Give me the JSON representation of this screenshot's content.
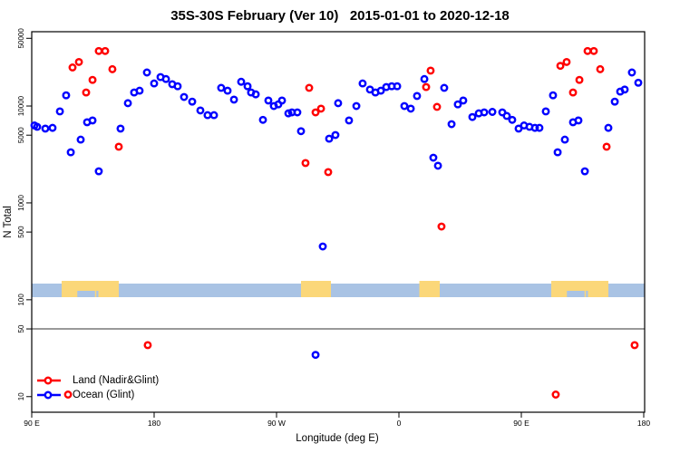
{
  "title": "35S-30S February (Ver 10)   2015-01-01 to 2020-12-18",
  "chart_data": {
    "type": "scatter",
    "title": "35S-30S February (Ver 10)   2015-01-01 to 2020-12-18",
    "xlabel": "Longitude (deg E)",
    "ylabel": "N Total",
    "x_axis": {
      "xlim": [
        90,
        540
      ],
      "ticks": [
        90,
        180,
        270,
        360,
        450,
        540
      ],
      "tick_labels": [
        "90 E",
        "180",
        "90 W",
        "0",
        "90 E",
        "180"
      ]
    },
    "y_axis": {
      "scale": "log",
      "ylim": [
        6.9,
        58500
      ],
      "ticks": [
        10,
        50,
        100,
        500,
        1000,
        5000,
        10000,
        50000
      ],
      "tick_labels": [
        "10",
        "50",
        "100",
        "500",
        "1000",
        "5000",
        "10000",
        "50000"
      ]
    },
    "reference_line_y": 50,
    "grid": false,
    "legend_position": "bottom-left",
    "map_strip": {
      "description": "land-ocean map band of latitude zone 35S-30S",
      "n_range": [
        100,
        150
      ],
      "ocean_color": "#a9c3e4",
      "land_color": "#fbd779",
      "land_segments_lon": [
        [
          112,
          154
        ],
        [
          288,
          310
        ],
        [
          375,
          390
        ],
        [
          472,
          514
        ]
      ],
      "ocean_notches_lon": [
        [
          123.5,
          136.5
        ],
        [
          137.5,
          139
        ],
        [
          483.5,
          496.5
        ],
        [
          497.5,
          499
        ]
      ]
    },
    "series": [
      {
        "name": "Land (Nadir&Glint)",
        "color": "#ff0000",
        "marker": "open-circle",
        "points": [
          [
            139.3,
            37000
          ],
          [
            144,
            37000
          ],
          [
            124.7,
            28500
          ],
          [
            120,
            25000
          ],
          [
            149.3,
            24000
          ],
          [
            134.7,
            18600
          ],
          [
            130,
            13800
          ],
          [
            154,
            3800
          ],
          [
            294,
            15400
          ],
          [
            298.7,
            8600
          ],
          [
            302.7,
            9400
          ],
          [
            291.3,
            2580
          ],
          [
            308,
            2080
          ],
          [
            380,
            15700
          ],
          [
            383.3,
            23200
          ],
          [
            388,
            9800
          ],
          [
            391.3,
            570
          ],
          [
            478.7,
            26000
          ],
          [
            483.3,
            28500
          ],
          [
            488,
            13800
          ],
          [
            492.7,
            18600
          ],
          [
            498.7,
            37000
          ],
          [
            503.3,
            37000
          ],
          [
            508,
            24000
          ],
          [
            512.7,
            3800
          ],
          [
            175.3,
            34
          ],
          [
            533.3,
            34
          ],
          [
            116.7,
            10.5
          ],
          [
            475.3,
            10.5
          ]
        ]
      },
      {
        "name": "Ocean (Glint)",
        "color": "#0000ff",
        "marker": "open-circle",
        "points": [
          [
            92,
            6300
          ],
          [
            94,
            6100
          ],
          [
            100,
            5850
          ],
          [
            105.3,
            5950
          ],
          [
            110.7,
            8800
          ],
          [
            115.3,
            12900
          ],
          [
            118.7,
            3330
          ],
          [
            126,
            4500
          ],
          [
            130.7,
            6800
          ],
          [
            134.7,
            7100
          ],
          [
            139.3,
            2120
          ],
          [
            155.3,
            5850
          ],
          [
            160.7,
            10700
          ],
          [
            165.3,
            13800
          ],
          [
            169.3,
            14400
          ],
          [
            174.7,
            22200
          ],
          [
            180,
            17100
          ],
          [
            184.7,
            19900
          ],
          [
            188.7,
            19000
          ],
          [
            193.3,
            16800
          ],
          [
            197.3,
            16000
          ],
          [
            202,
            12400
          ],
          [
            208,
            11100
          ],
          [
            214,
            9000
          ],
          [
            219.3,
            8050
          ],
          [
            224,
            8050
          ],
          [
            229.3,
            15400
          ],
          [
            234,
            14400
          ],
          [
            238.7,
            11650
          ],
          [
            244,
            17800
          ],
          [
            248.7,
            16000
          ],
          [
            251.3,
            13800
          ],
          [
            254.7,
            13200
          ],
          [
            260,
            7200
          ],
          [
            264,
            11400
          ],
          [
            268,
            10000
          ],
          [
            271.3,
            10400
          ],
          [
            274,
            11400
          ],
          [
            278.7,
            8400
          ],
          [
            281.3,
            8600
          ],
          [
            285.3,
            8600
          ],
          [
            288,
            5500
          ],
          [
            298.7,
            27
          ],
          [
            304,
            355
          ],
          [
            308.7,
            4600
          ],
          [
            313.3,
            5020
          ],
          [
            315.3,
            10700
          ],
          [
            323.3,
            7100
          ],
          [
            328.7,
            10000
          ],
          [
            333.3,
            17100
          ],
          [
            338.7,
            14800
          ],
          [
            342.7,
            13800
          ],
          [
            346.7,
            14400
          ],
          [
            350.7,
            15700
          ],
          [
            354.7,
            16000
          ],
          [
            358.7,
            16000
          ],
          [
            364,
            10000
          ],
          [
            368.7,
            9400
          ],
          [
            373.3,
            12700
          ],
          [
            378.7,
            19000
          ],
          [
            385.3,
            2930
          ],
          [
            388.7,
            2420
          ],
          [
            393.3,
            15400
          ],
          [
            398.7,
            6500
          ],
          [
            403.3,
            10400
          ],
          [
            407.3,
            11400
          ],
          [
            414,
            7700
          ],
          [
            418.7,
            8400
          ],
          [
            422.7,
            8600
          ],
          [
            428.7,
            8700
          ],
          [
            436,
            8600
          ],
          [
            439.3,
            7900
          ],
          [
            443.3,
            7200
          ],
          [
            448,
            5850
          ],
          [
            452,
            6300
          ],
          [
            456,
            6100
          ],
          [
            460,
            5950
          ],
          [
            463.3,
            5950
          ],
          [
            468,
            8800
          ],
          [
            473.3,
            12900
          ],
          [
            476.7,
            3330
          ],
          [
            482,
            4500
          ],
          [
            488,
            6800
          ],
          [
            492,
            7100
          ],
          [
            496.7,
            2120
          ],
          [
            514,
            5950
          ],
          [
            518.7,
            11100
          ],
          [
            522.7,
            14100
          ],
          [
            526,
            14800
          ],
          [
            531.3,
            22200
          ],
          [
            536,
            17400
          ]
        ]
      }
    ]
  },
  "legend": {
    "land_label": "Land (Nadir&Glint)",
    "ocean_label": "Ocean (Glint)"
  }
}
